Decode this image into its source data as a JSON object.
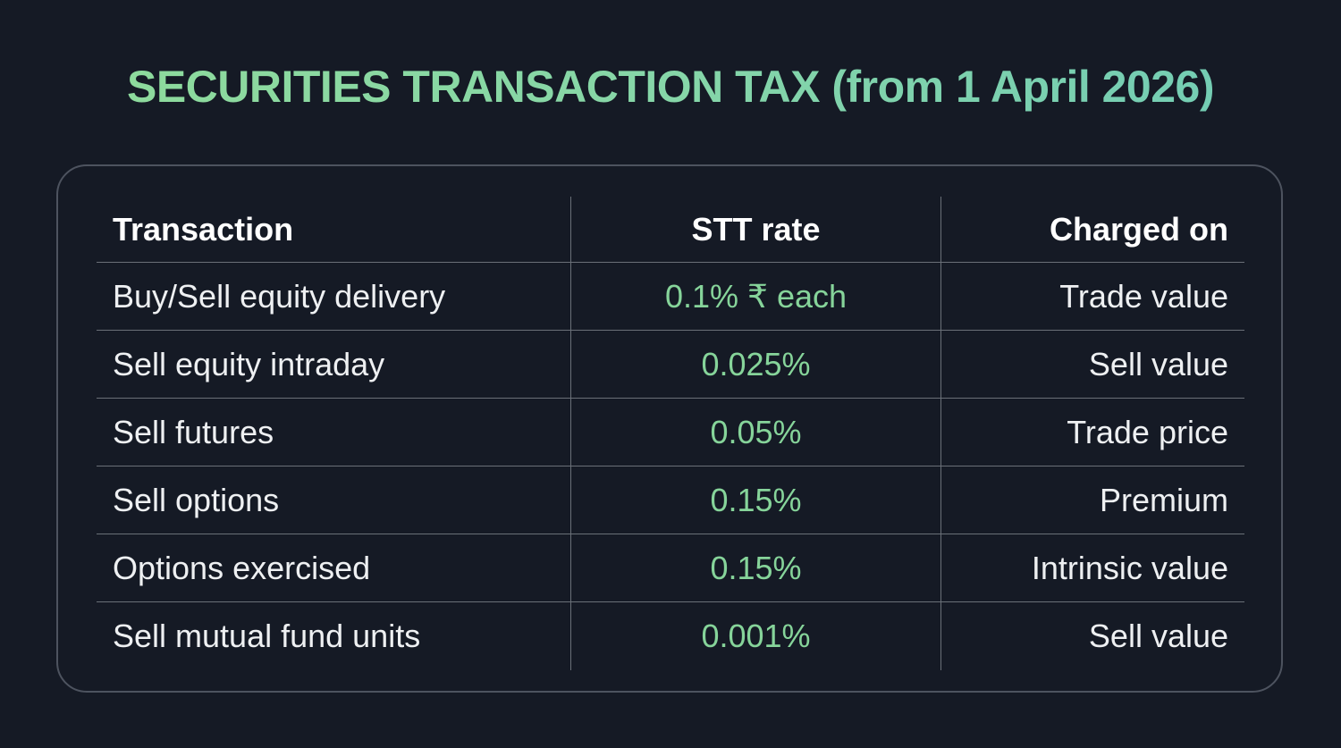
{
  "title": "SECURITIES TRANSACTION TAX (from 1 April 2026)",
  "table": {
    "headers": [
      "Transaction",
      "STT rate",
      "Charged on"
    ],
    "rows": [
      [
        "Buy/Sell equity delivery",
        "0.1% ₹ each",
        "Trade value"
      ],
      [
        "Sell equity intraday",
        "0.025%",
        "Sell value"
      ],
      [
        "Sell futures",
        "0.05%",
        "Trade price"
      ],
      [
        "Sell options",
        "0.15%",
        "Premium"
      ],
      [
        "Options exercised",
        "0.15%",
        "Intrinsic value"
      ],
      [
        "Sell mutual fund units",
        "0.001%",
        "Sell value"
      ]
    ]
  },
  "colors": {
    "background": "#151a25",
    "title_gradient_start": "#8fdb9a",
    "title_gradient_end": "#70cbb6",
    "rate_text": "#86d49a",
    "border": "#4d535f"
  }
}
